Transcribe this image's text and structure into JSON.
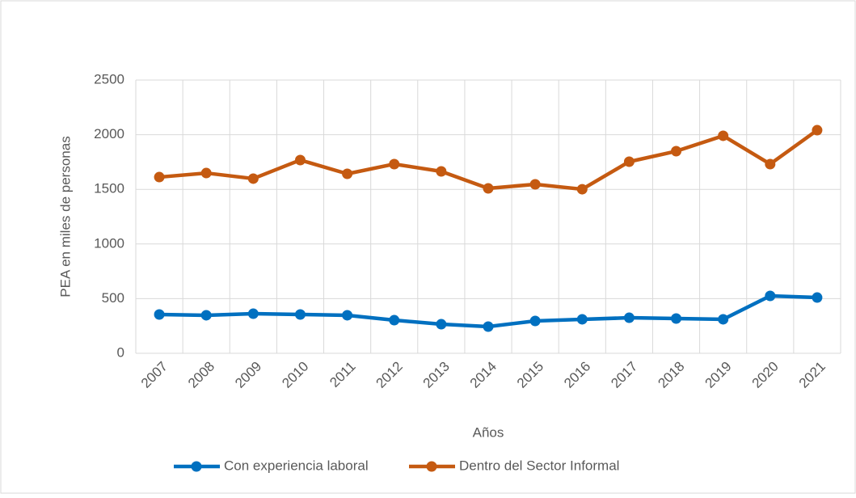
{
  "chart_data": {
    "type": "line",
    "categories": [
      "2007",
      "2008",
      "2009",
      "2010",
      "2011",
      "2012",
      "2013",
      "2014",
      "2015",
      "2016",
      "2017",
      "2018",
      "2019",
      "2020",
      "2021"
    ],
    "series": [
      {
        "name": "Con experiencia laboral",
        "color": "#0070c0",
        "values": [
          355,
          348,
          362,
          355,
          348,
          303,
          266,
          244,
          296,
          311,
          325,
          318,
          311,
          525,
          510
        ]
      },
      {
        "name": "Dentro del Sector Informal",
        "color": "#c55a11",
        "values": [
          1612,
          1649,
          1598,
          1768,
          1642,
          1731,
          1664,
          1509,
          1546,
          1501,
          1753,
          1849,
          1990,
          1731,
          2041
        ]
      }
    ],
    "ylabel": "PEA en miles de personas",
    "xlabel": "Años",
    "ylim": [
      0,
      2500
    ],
    "yticks": [
      0,
      500,
      1000,
      1500,
      2000,
      2500
    ],
    "grid": true,
    "legend": "bottom"
  }
}
